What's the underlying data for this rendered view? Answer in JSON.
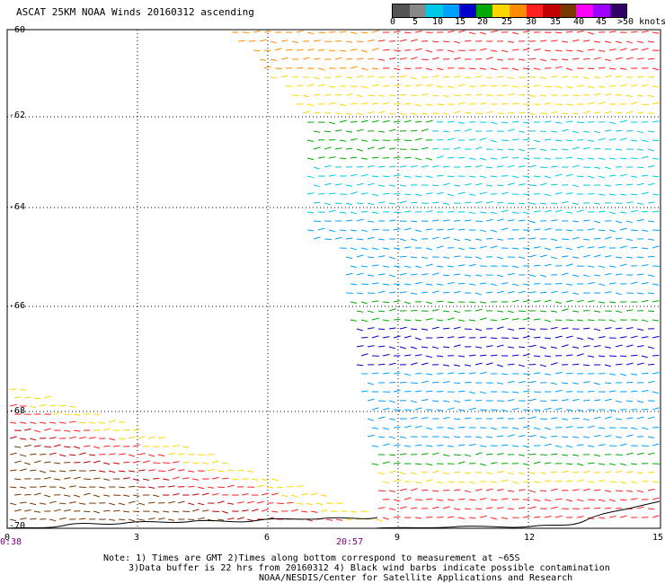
{
  "title": "ASCAT 25KM NOAA Winds 20160312 ascending",
  "legend": {
    "labels": [
      "0",
      "5",
      "10",
      "15",
      "20",
      "25",
      "30",
      "35",
      "40",
      "45",
      ">50 knots"
    ],
    "colors": [
      "#555555",
      "#888888",
      "#00c8e6",
      "#00a0ff",
      "#0000cc",
      "#00aa00",
      "#ffd700",
      "#ff8c00",
      "#ff2020",
      "#c00000",
      "#7a3800",
      "#ff00ff",
      "#a000ff",
      "#330066"
    ]
  },
  "axes": {
    "lat_labels": [
      "-60",
      "-62",
      "-64",
      "-66",
      "-68",
      "-70"
    ],
    "lon_labels": [
      "0",
      "3",
      "6",
      "9",
      "12",
      "15"
    ]
  },
  "times": [
    "0:38",
    "20:57"
  ],
  "notes": [
    "Note: 1) Times are GMT 2)Times along bottom correspond to measurement at ~65S",
    "3)Data buffer is 22 hrs from 20160312 4) Black wind barbs indicate possible contamination",
    "NOAA/NESDIS/Center for Satellite Applications and Research"
  ]
}
